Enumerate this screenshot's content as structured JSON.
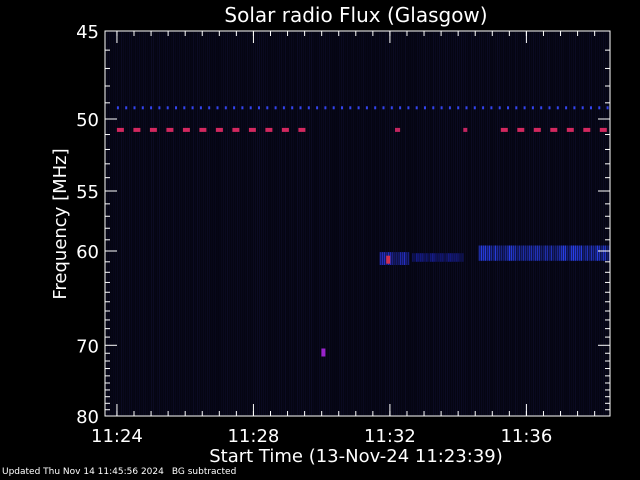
{
  "chart_data": {
    "type": "heatmap",
    "title": "Solar radio Flux (Glasgow)",
    "xlabel": "Start Time (13-Nov-24 11:23:39)",
    "ylabel": "Frequency [MHz]",
    "x_ticks": [
      "11:24",
      "11:28",
      "11:32",
      "11:36"
    ],
    "x_tick_minutes": [
      0.35,
      4.35,
      8.35,
      12.35
    ],
    "xlim_minutes": [
      0,
      14.8
    ],
    "y_ticks": [
      45,
      50,
      55,
      60,
      70,
      80
    ],
    "ylim": [
      45,
      80
    ],
    "y_scale": "reciprocal",
    "grid": false,
    "features": [
      {
        "kind": "dashed-band",
        "freq_mhz": 50.7,
        "t_start": 0.35,
        "t_end": 6.2,
        "color": "#d2285f"
      },
      {
        "kind": "dashed-band",
        "freq_mhz": 50.7,
        "t_start": 8.5,
        "t_end": 8.65,
        "color": "#c22560"
      },
      {
        "kind": "dashed-band",
        "freq_mhz": 50.7,
        "t_start": 10.5,
        "t_end": 10.6,
        "color": "#c22560"
      },
      {
        "kind": "dashed-band",
        "freq_mhz": 50.7,
        "t_start": 11.6,
        "t_end": 14.8,
        "color": "#d2285f"
      },
      {
        "kind": "dotted-band",
        "freq_mhz": 49.3,
        "t_start": 0.35,
        "t_end": 14.8,
        "color": "#3344ee"
      },
      {
        "kind": "burst",
        "freq_lo": 60.1,
        "freq_hi": 61.3,
        "t_start": 8.05,
        "t_end": 8.9,
        "color": "#2a35dd"
      },
      {
        "kind": "burst",
        "freq_lo": 60.2,
        "freq_hi": 61.0,
        "t_start": 9.0,
        "t_end": 10.5,
        "color": "#1a22aa"
      },
      {
        "kind": "burst",
        "freq_lo": 59.5,
        "freq_hi": 60.9,
        "t_start": 10.95,
        "t_end": 14.8,
        "color": "#2c45ff"
      },
      {
        "kind": "spot",
        "freq_mhz": 60.8,
        "t": 8.3,
        "color": "#d03050"
      },
      {
        "kind": "spot",
        "freq_mhz": 70.9,
        "t": 6.4,
        "color": "#9922cc"
      }
    ]
  },
  "footer": {
    "updated": "Updated Thu Nov 14 11:45:56 2024",
    "note": "BG subtracted"
  }
}
